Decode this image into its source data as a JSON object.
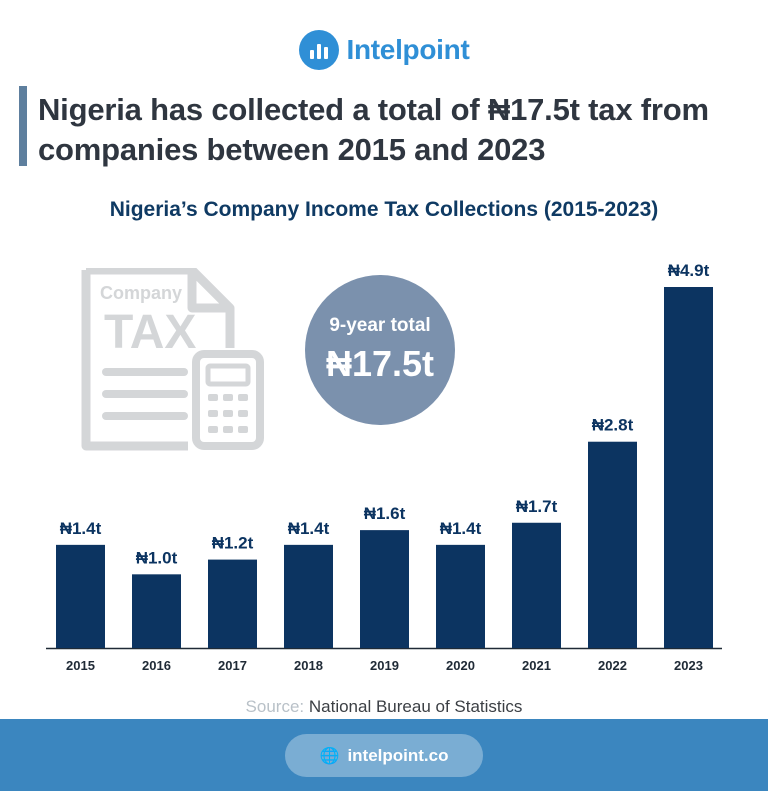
{
  "brand": {
    "name": "Intelpoint",
    "logo_icon": "bar-chart-icon",
    "color": "#2f8fd6"
  },
  "headline": "Nigeria has collected a total of ₦17.5t tax from companies between 2015 and 2023",
  "illustration": {
    "icon": "tax-document-calculator-icon",
    "line1": "Company",
    "line2": "TAX"
  },
  "total_badge": {
    "label": "9-year total",
    "value": "₦17.5t"
  },
  "source": {
    "label": "Source:",
    "value": "National Bureau of Statistics"
  },
  "footer": {
    "icon": "globe-icon",
    "url": "intelpoint.co"
  },
  "chart_data": {
    "type": "bar",
    "title": "Nigeria’s Company Income Tax Collections (2015-2023)",
    "xlabel": "",
    "ylabel": "",
    "categories": [
      "2015",
      "2016",
      "2017",
      "2018",
      "2019",
      "2020",
      "2021",
      "2022",
      "2023"
    ],
    "values": [
      1.4,
      1.0,
      1.2,
      1.4,
      1.6,
      1.4,
      1.7,
      2.8,
      4.9
    ],
    "data_labels": [
      "₦1.4t",
      "₦1.0t",
      "₦1.2t",
      "₦1.4t",
      "₦1.6t",
      "₦1.4t",
      "₦1.7t",
      "₦2.8t",
      "₦4.9t"
    ],
    "ylim": [
      0,
      4.9
    ],
    "bar_color": "#0c3461",
    "grid": false,
    "legend": "none"
  }
}
